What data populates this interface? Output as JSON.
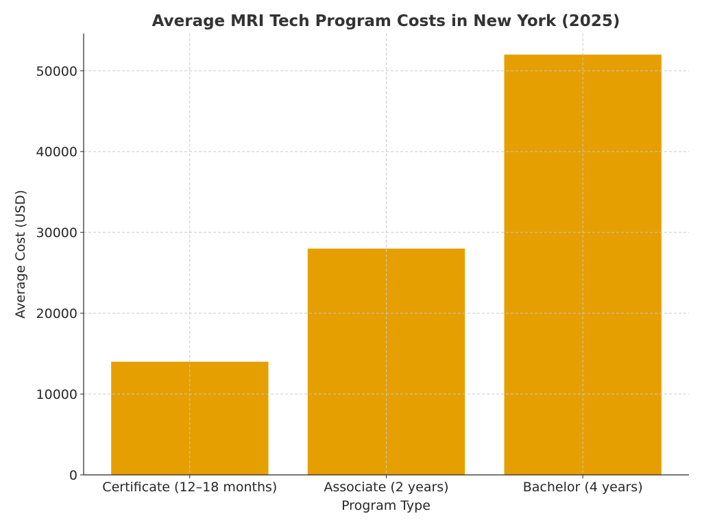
{
  "chart_data": {
    "type": "bar",
    "title": "Average MRI Tech Program Costs in New York (2025)",
    "xlabel": "Program Type",
    "ylabel": "Average Cost (USD)",
    "categories": [
      "Certificate (12–18 months)",
      "Associate (2 years)",
      "Bachelor (4 years)"
    ],
    "values": [
      14000,
      28000,
      52000
    ],
    "ylim": [
      0,
      54600
    ],
    "yticks": [
      0,
      10000,
      20000,
      30000,
      40000,
      50000
    ],
    "grid": true,
    "bar_color": "#E69F00",
    "legend": "none"
  }
}
